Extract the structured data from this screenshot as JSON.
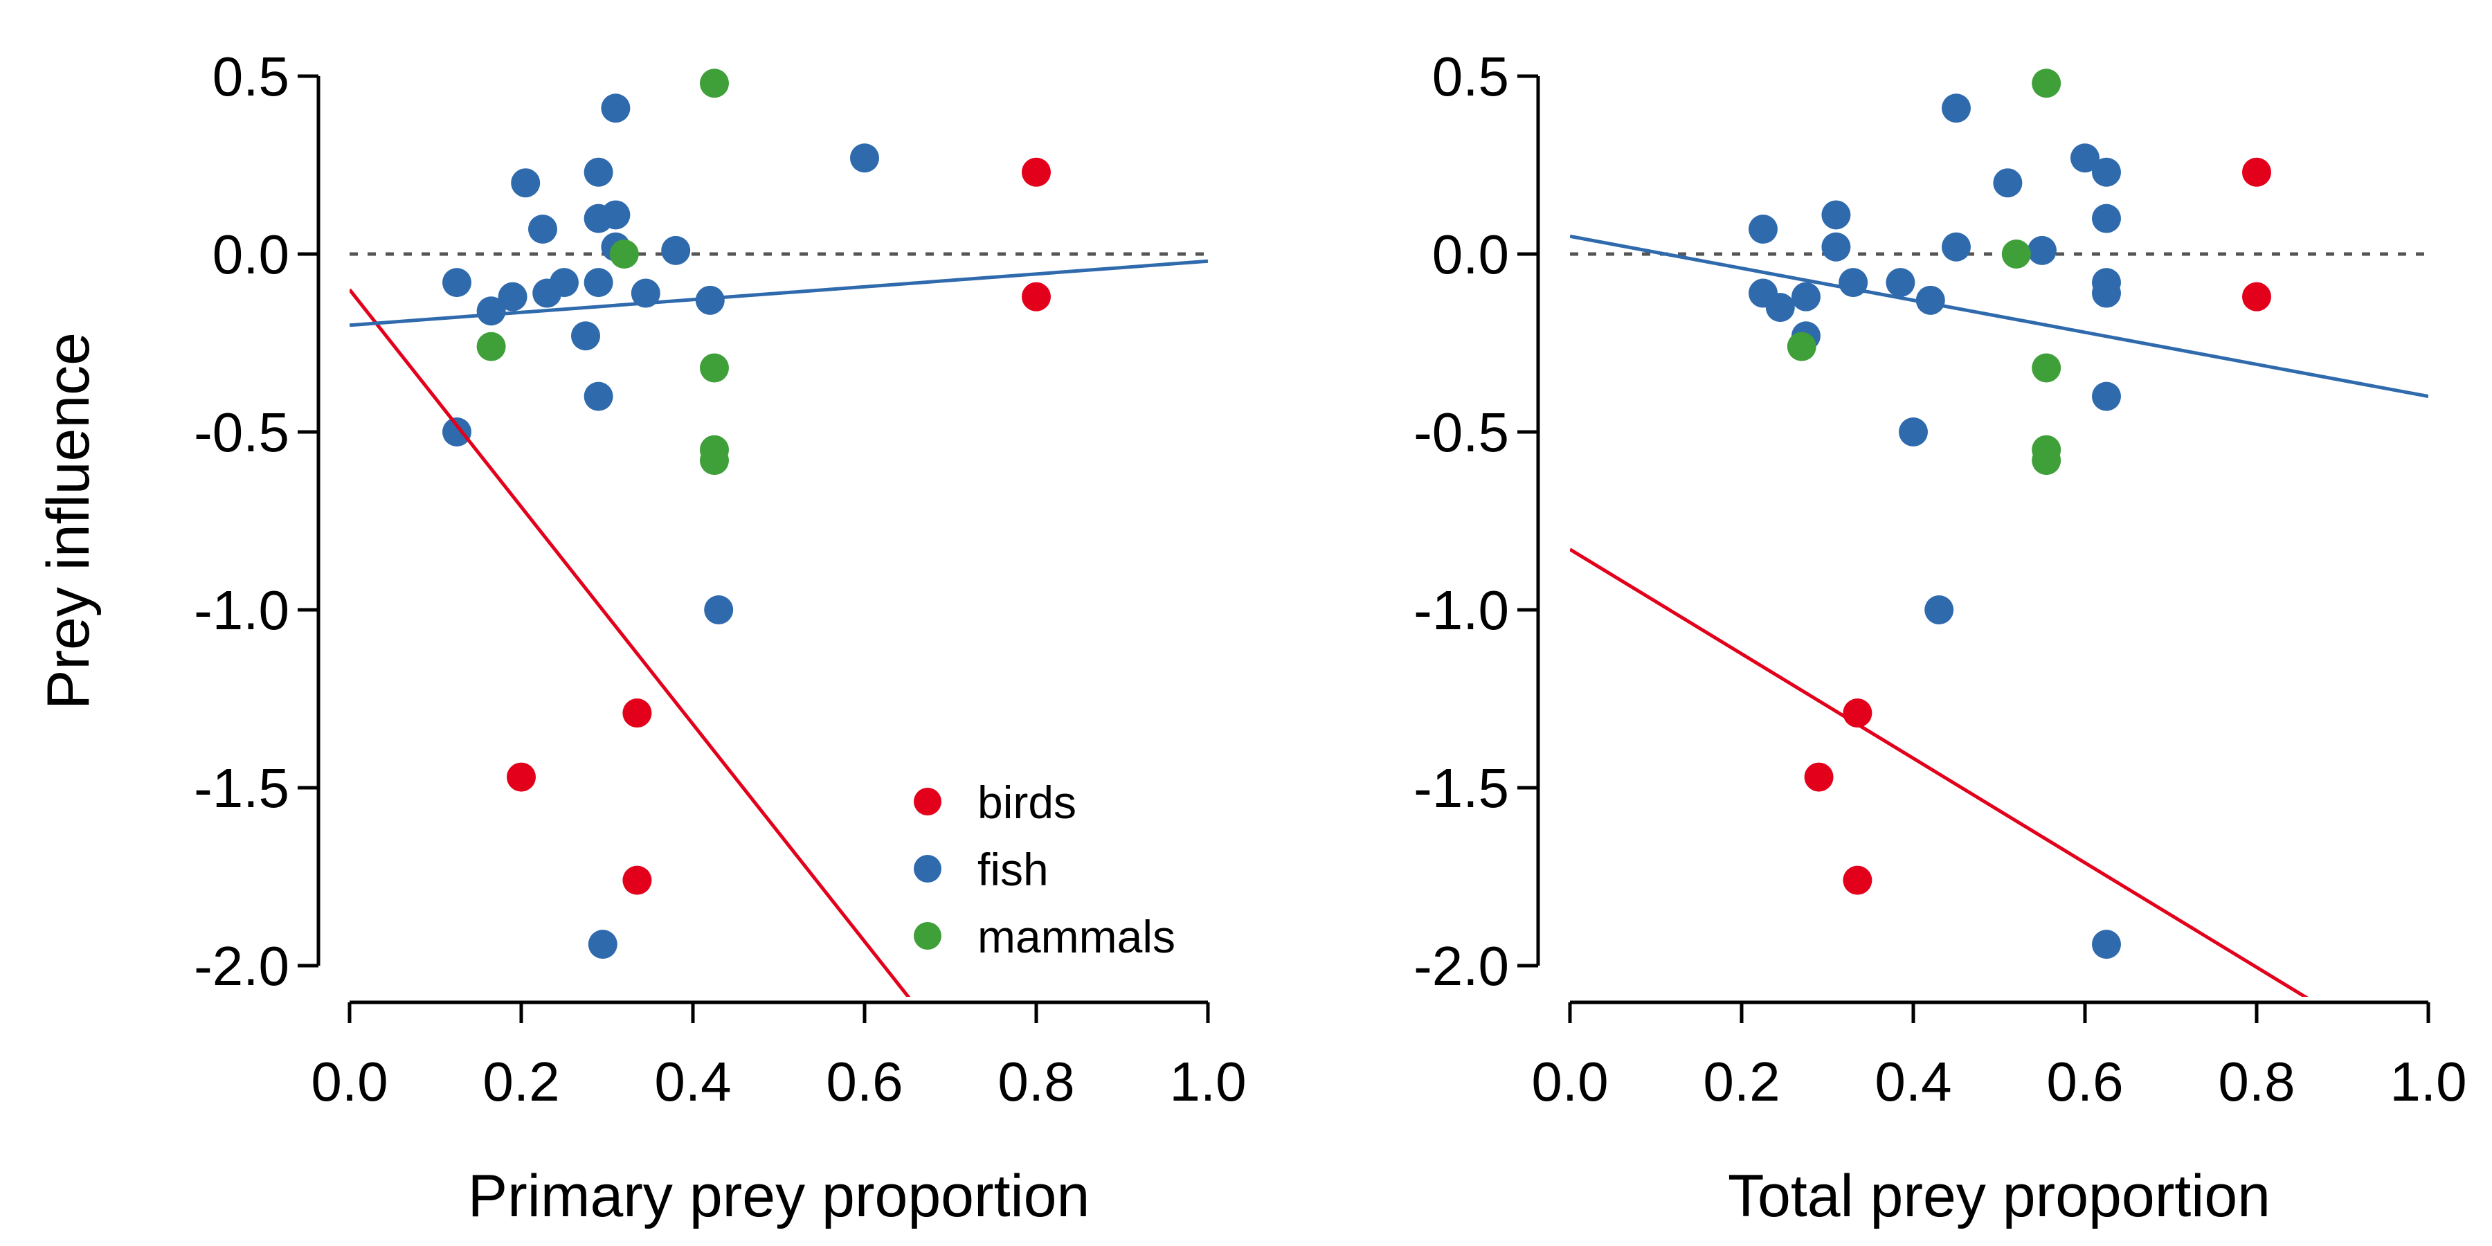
{
  "colors": {
    "birds": "#e3001b",
    "fish": "#2f6aad",
    "mammals": "#3f9f39",
    "reference_line": "#555555"
  },
  "chart_data": [
    {
      "type": "scatter",
      "xlabel": "Primary prey proportion",
      "ylabel": "Prey influence",
      "xlim": [
        0.0,
        1.0
      ],
      "ylim": [
        -2.0,
        0.5
      ],
      "xticks": [
        "0.0",
        "0.2",
        "0.4",
        "0.6",
        "0.8",
        "1.0"
      ],
      "yticks": [
        "0.5",
        "0.0",
        "-0.5",
        "-1.0",
        "-1.5",
        "-2.0"
      ],
      "grid": false,
      "reference_line_y": 0,
      "legend": {
        "placement": "bottom-right",
        "entries": [
          {
            "name": "birds",
            "color": "#e3001b"
          },
          {
            "name": "fish",
            "color": "#2f6aad"
          },
          {
            "name": "mammals",
            "color": "#3f9f39"
          }
        ]
      },
      "series": [
        {
          "name": "birds",
          "color": "#e3001b",
          "points": [
            [
              0.8,
              0.23
            ],
            [
              0.8,
              -0.12
            ],
            [
              0.335,
              -1.29
            ],
            [
              0.2,
              -1.47
            ],
            [
              0.335,
              -1.76
            ]
          ],
          "fit_line": [
            [
              0.0,
              -0.1
            ],
            [
              0.655,
              -2.1
            ]
          ]
        },
        {
          "name": "fish",
          "color": "#2f6aad",
          "points": [
            [
              0.125,
              -0.08
            ],
            [
              0.165,
              -0.16
            ],
            [
              0.19,
              -0.12
            ],
            [
              0.205,
              0.2
            ],
            [
              0.225,
              0.07
            ],
            [
              0.23,
              -0.11
            ],
            [
              0.25,
              -0.08
            ],
            [
              0.275,
              -0.23
            ],
            [
              0.29,
              0.23
            ],
            [
              0.29,
              0.1
            ],
            [
              0.29,
              -0.08
            ],
            [
              0.29,
              -0.4
            ],
            [
              0.31,
              0.41
            ],
            [
              0.31,
              0.11
            ],
            [
              0.31,
              0.02
            ],
            [
              0.345,
              -0.11
            ],
            [
              0.38,
              0.01
            ],
            [
              0.42,
              -0.13
            ],
            [
              0.125,
              -0.5
            ],
            [
              0.43,
              -1.0
            ],
            [
              0.6,
              0.27
            ],
            [
              0.295,
              -1.94
            ]
          ],
          "fit_line": [
            [
              0.0,
              -0.2
            ],
            [
              1.0,
              -0.02
            ]
          ]
        },
        {
          "name": "mammals",
          "color": "#3f9f39",
          "points": [
            [
              0.425,
              0.48
            ],
            [
              0.32,
              0.0
            ],
            [
              0.165,
              -0.26
            ],
            [
              0.425,
              -0.32
            ],
            [
              0.425,
              -0.55
            ],
            [
              0.425,
              -0.58
            ]
          ]
        }
      ]
    },
    {
      "type": "scatter",
      "xlabel": "Total prey proportion",
      "ylabel": "",
      "xlim": [
        0.0,
        1.0
      ],
      "ylim": [
        -2.0,
        0.5
      ],
      "xticks": [
        "0.0",
        "0.2",
        "0.4",
        "0.6",
        "0.8",
        "1.0"
      ],
      "yticks": [
        "0.5",
        "0.0",
        "-0.5",
        "-1.0",
        "-1.5",
        "-2.0"
      ],
      "grid": false,
      "reference_line_y": 0,
      "series": [
        {
          "name": "birds",
          "color": "#e3001b",
          "points": [
            [
              0.8,
              0.23
            ],
            [
              0.8,
              -0.12
            ],
            [
              0.335,
              -1.29
            ],
            [
              0.29,
              -1.47
            ],
            [
              0.335,
              -1.76
            ]
          ],
          "fit_line": [
            [
              0.0,
              -0.83
            ],
            [
              0.865,
              -2.1
            ]
          ]
        },
        {
          "name": "fish",
          "color": "#2f6aad",
          "points": [
            [
              0.225,
              0.07
            ],
            [
              0.225,
              -0.11
            ],
            [
              0.245,
              -0.15
            ],
            [
              0.275,
              -0.12
            ],
            [
              0.275,
              -0.23
            ],
            [
              0.31,
              0.11
            ],
            [
              0.31,
              0.02
            ],
            [
              0.33,
              -0.08
            ],
            [
              0.385,
              -0.08
            ],
            [
              0.42,
              -0.13
            ],
            [
              0.4,
              -0.5
            ],
            [
              0.45,
              0.41
            ],
            [
              0.45,
              0.02
            ],
            [
              0.51,
              0.2
            ],
            [
              0.55,
              0.01
            ],
            [
              0.6,
              0.27
            ],
            [
              0.625,
              0.23
            ],
            [
              0.625,
              0.1
            ],
            [
              0.625,
              -0.08
            ],
            [
              0.625,
              -0.11
            ],
            [
              0.625,
              -0.4
            ],
            [
              0.43,
              -1.0
            ],
            [
              0.625,
              -1.94
            ]
          ],
          "fit_line": [
            [
              0.0,
              0.05
            ],
            [
              1.0,
              -0.4
            ]
          ]
        },
        {
          "name": "mammals",
          "color": "#3f9f39",
          "points": [
            [
              0.555,
              0.48
            ],
            [
              0.52,
              0.0
            ],
            [
              0.27,
              -0.26
            ],
            [
              0.555,
              -0.32
            ],
            [
              0.555,
              -0.55
            ],
            [
              0.555,
              -0.58
            ]
          ]
        }
      ]
    }
  ]
}
